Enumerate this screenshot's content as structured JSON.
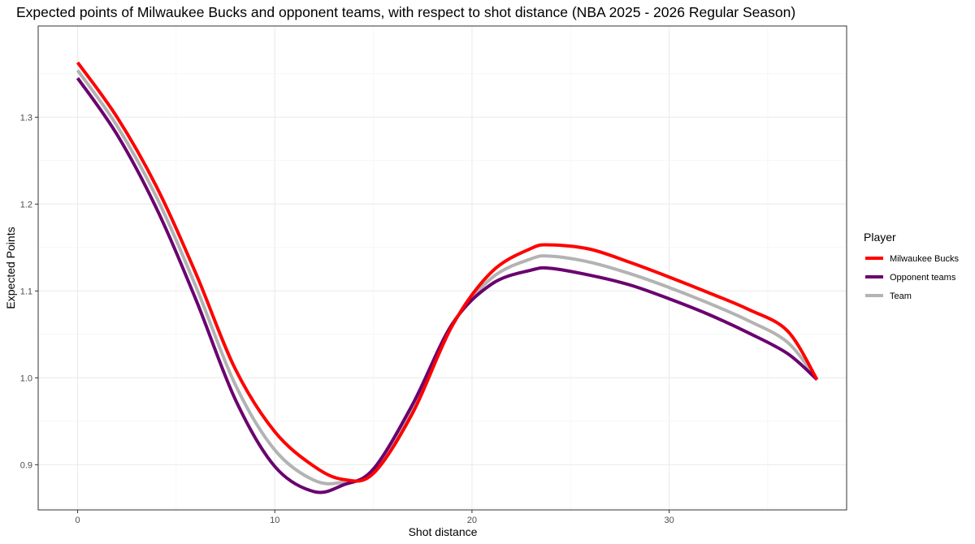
{
  "chart_data": {
    "type": "line",
    "title": "Expected points of Milwaukee Bucks and opponent teams, with respect to shot distance (NBA 2025 - 2026 Regular Season)",
    "xlabel": "Shot distance",
    "ylabel": "Expected Points",
    "xlim": [
      -2,
      39
    ],
    "ylim": [
      0.848,
      1.405
    ],
    "x_ticks": [
      0,
      10,
      20,
      30
    ],
    "y_ticks": [
      0.9,
      1.0,
      1.1,
      1.2,
      1.3
    ],
    "x_tick_labels": [
      "0",
      "10",
      "20",
      "30"
    ],
    "y_tick_labels": [
      "0.9",
      "1.0",
      "1.1",
      "1.2",
      "1.3"
    ],
    "grid": true,
    "legend": {
      "title": "Player",
      "position": "right"
    },
    "x": [
      0,
      2,
      4,
      6,
      8,
      10,
      12,
      13.5,
      15,
      17,
      19,
      21,
      23,
      24,
      26,
      28,
      30,
      32,
      34,
      36,
      37.5
    ],
    "series": [
      {
        "name": "Milwaukee Bucks",
        "color": "#ff0000",
        "values": [
          1.363,
          1.3,
          1.22,
          1.12,
          1.01,
          0.938,
          0.898,
          0.883,
          0.89,
          0.96,
          1.06,
          1.122,
          1.149,
          1.153,
          1.148,
          1.133,
          1.116,
          1.098,
          1.079,
          1.054,
          0.998
        ]
      },
      {
        "name": "Opponent teams",
        "color": "#6a006f",
        "values": [
          1.345,
          1.28,
          1.195,
          1.09,
          0.975,
          0.898,
          0.869,
          0.877,
          0.895,
          0.97,
          1.062,
          1.108,
          1.124,
          1.126,
          1.118,
          1.107,
          1.091,
          1.073,
          1.052,
          1.028,
          0.998
        ]
      },
      {
        "name": "Team",
        "color": "#b3b3b3",
        "values": [
          1.354,
          1.29,
          1.208,
          1.105,
          0.992,
          0.917,
          0.882,
          0.88,
          0.892,
          0.965,
          1.061,
          1.115,
          1.137,
          1.14,
          1.133,
          1.12,
          1.104,
          1.086,
          1.066,
          1.041,
          0.998
        ]
      }
    ]
  }
}
